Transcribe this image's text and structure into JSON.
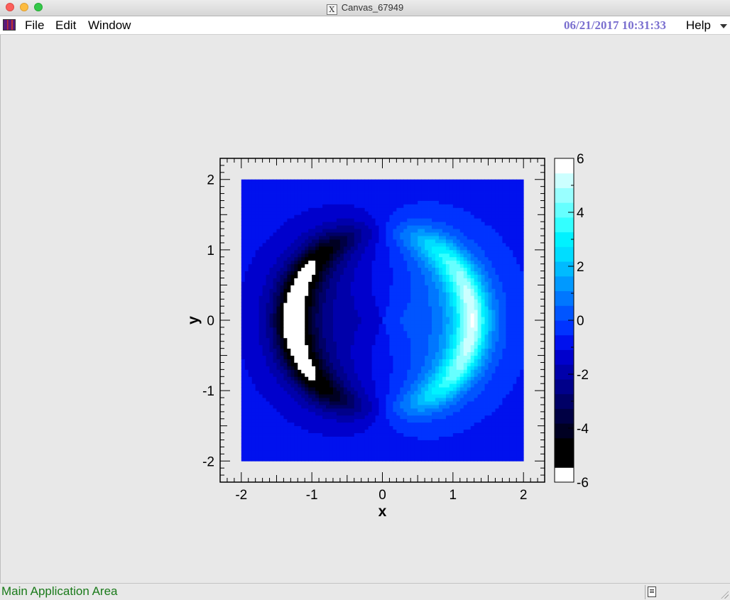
{
  "window": {
    "title": "Canvas_67949",
    "title_icon": "x11-icon"
  },
  "menu": {
    "file": "File",
    "edit": "Edit",
    "window": "Window",
    "help": "Help"
  },
  "datetime": "06/21/2017 10:31:33",
  "status": {
    "text": "Main Application Area"
  },
  "colors": {
    "datetime": "#7a6fcf",
    "status": "#1a7a1a"
  },
  "chart_data": {
    "type": "heatmap",
    "xlabel": "x",
    "ylabel": "y",
    "xlim": [
      -2.3,
      2.3
    ],
    "ylim": [
      -2.3,
      2.3
    ],
    "data_range": [
      -2.0,
      2.0
    ],
    "x_ticks": [
      "-2",
      "-1",
      "0",
      "1",
      "2"
    ],
    "y_ticks": [
      "-2",
      "-1",
      "0",
      "1",
      "2"
    ],
    "z_range": [
      -6,
      6
    ],
    "colorbar_ticks": [
      "6",
      "4",
      "2",
      "0",
      "-2",
      "-4",
      "-6"
    ],
    "palette_low_to_high": [
      "#ffffff",
      "#000000",
      "#000000",
      "#000022",
      "#000044",
      "#000066",
      "#00008a",
      "#0000aa",
      "#0000cc",
      "#0011ee",
      "#0033ff",
      "#0055ff",
      "#0077ff",
      "#0099ff",
      "#00bbff",
      "#00ddff",
      "#00f2ff",
      "#33ffff",
      "#66ffff",
      "#99ffff",
      "#ccffff",
      "#ffffff"
    ],
    "z_function": "angle(z) / (|z|^2 - 1.6)^2 style ring pattern"
  }
}
